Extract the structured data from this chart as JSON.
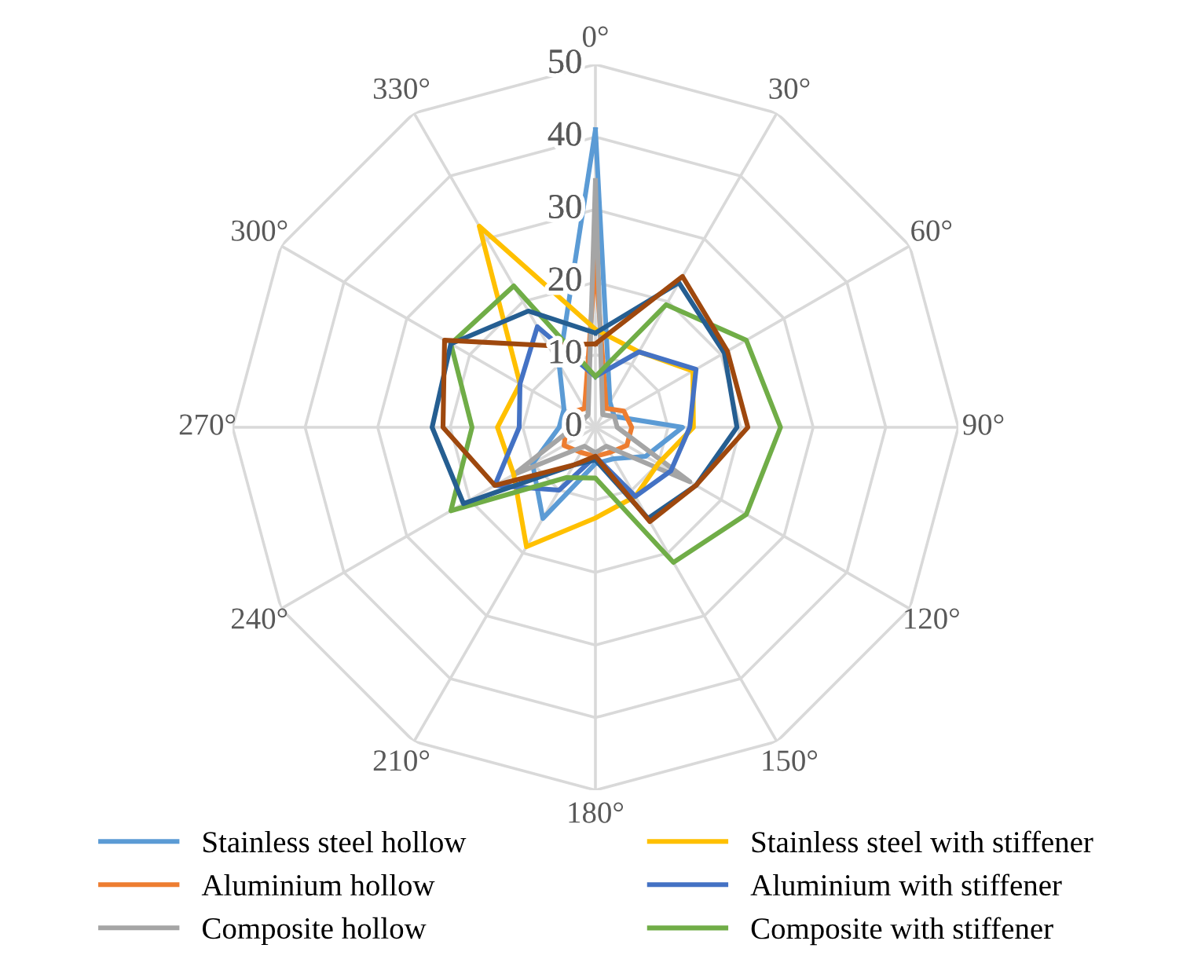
{
  "chart_data": {
    "type": "radar",
    "categories": [
      "0°",
      "30°",
      "60°",
      "90°",
      "120°",
      "150°",
      "180°",
      "210°",
      "240°",
      "270°",
      "300°",
      "330°"
    ],
    "ylim": [
      0,
      50
    ],
    "yticks": [
      0,
      10,
      20,
      30,
      40,
      50
    ],
    "grid": true,
    "legend": "bottom",
    "series": [
      {
        "name": "Stainless steel hollow",
        "color": "#5b9bd5",
        "values": [
          41,
          4,
          3,
          12,
          8,
          5,
          5,
          14.5,
          10,
          5,
          5,
          10
        ]
      },
      {
        "name": "Aluminium hollow",
        "color": "#ed7d31",
        "values": [
          23,
          3,
          4.5,
          5,
          5,
          4,
          4,
          4,
          5,
          4,
          4,
          3
        ]
      },
      {
        "name": "Composite hollow",
        "color": "#a5a5a5",
        "values": [
          34,
          2,
          3,
          3,
          15,
          3,
          3.5,
          3,
          13,
          3,
          2,
          2
        ]
      },
      {
        "name": "Stainless steel with stiffener",
        "color": "#ffc000",
        "values": [
          13.5,
          12,
          15.5,
          13.5,
          10,
          11,
          12.5,
          19,
          13,
          13.5,
          12,
          32
        ]
      },
      {
        "name": "Aluminium with stiffener",
        "color": "#4472c4",
        "values": [
          7,
          12,
          16,
          13,
          12,
          11,
          4,
          10,
          16,
          10.5,
          12,
          16
        ]
      },
      {
        "name": "Composite with stiffener",
        "color": "#70ad47",
        "values": [
          7,
          19.5,
          24,
          25.5,
          24,
          21.5,
          7,
          8,
          23,
          17,
          23,
          22.5
        ]
      },
      {
        "color": "#255e91",
        "values": [
          13,
          23,
          20.5,
          19.5,
          16,
          14.5,
          4.5,
          6,
          21,
          22.5,
          23,
          18.5
        ]
      },
      {
        "color": "#9e480e",
        "values": [
          11.5,
          24,
          21,
          21,
          16,
          15,
          4,
          6,
          16,
          21,
          24,
          13
        ]
      }
    ]
  }
}
